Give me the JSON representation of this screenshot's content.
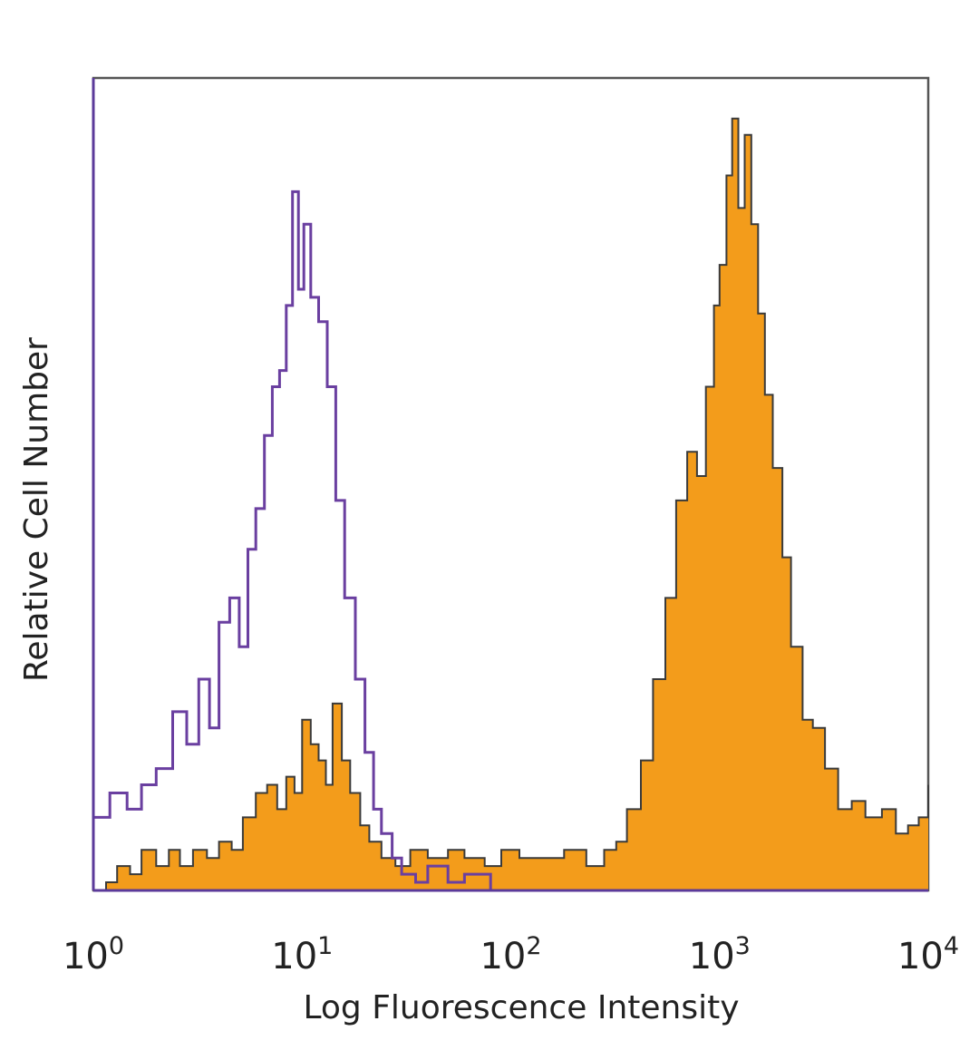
{
  "chart_data": {
    "type": "area",
    "title": "",
    "xlabel": "Log Fluorescence Intensity",
    "ylabel": "Relative Cell Number",
    "xscale": "log",
    "xlim": [
      1,
      10000
    ],
    "ylim": [
      0,
      1
    ],
    "grid": false,
    "legend": "none",
    "x_ticks": [
      {
        "base": "10",
        "exp": "0"
      },
      {
        "base": "10",
        "exp": "1"
      },
      {
        "base": "10",
        "exp": "2"
      },
      {
        "base": "10",
        "exp": "3"
      },
      {
        "base": "10",
        "exp": "4"
      }
    ],
    "series": [
      {
        "style": "outline",
        "color": "#6a3fa0",
        "x": [
          1.0,
          1.2,
          1.45,
          1.7,
          2.0,
          2.4,
          2.8,
          3.2,
          3.6,
          4.0,
          4.5,
          5.0,
          5.5,
          6.0,
          6.6,
          7.2,
          7.8,
          8.4,
          9.0,
          9.6,
          10.2,
          11.0,
          12.0,
          13.2,
          14.5,
          16.0,
          18.0,
          20.0,
          22.0,
          24.0,
          27.0,
          30.0,
          35.0,
          40.0,
          50.0,
          60.0,
          80.0,
          100.0
        ],
        "y": [
          0.09,
          0.12,
          0.1,
          0.13,
          0.15,
          0.22,
          0.18,
          0.26,
          0.2,
          0.33,
          0.36,
          0.3,
          0.42,
          0.47,
          0.56,
          0.62,
          0.64,
          0.72,
          0.86,
          0.74,
          0.82,
          0.73,
          0.7,
          0.62,
          0.48,
          0.36,
          0.26,
          0.17,
          0.1,
          0.07,
          0.04,
          0.02,
          0.01,
          0.03,
          0.01,
          0.02,
          0.0,
          0.0
        ]
      },
      {
        "style": "filled",
        "color": "#f39c1b",
        "x": [
          1.0,
          1.15,
          1.3,
          1.5,
          1.7,
          2.0,
          2.3,
          2.6,
          3.0,
          3.5,
          4.0,
          4.6,
          5.2,
          6.0,
          6.8,
          7.6,
          8.4,
          9.2,
          10.0,
          11.0,
          12.0,
          13.0,
          14.0,
          15.5,
          17.0,
          19.0,
          21.0,
          24.0,
          28.0,
          33.0,
          40.0,
          50.0,
          60.0,
          75.0,
          90.0,
          110.0,
          140.0,
          180.0,
          230.0,
          280.0,
          320.0,
          360.0,
          420.0,
          480.0,
          550.0,
          620.0,
          700.0,
          780.0,
          860.0,
          940.0,
          1000.0,
          1080.0,
          1150.0,
          1230.0,
          1320.0,
          1420.0,
          1530.0,
          1650.0,
          1800.0,
          2000.0,
          2200.0,
          2500.0,
          2800.0,
          3200.0,
          3700.0,
          4300.0,
          5000.0,
          6000.0,
          7000.0,
          8000.0,
          9000.0,
          10000.0
        ],
        "y": [
          0.0,
          0.01,
          0.03,
          0.02,
          0.05,
          0.03,
          0.05,
          0.03,
          0.05,
          0.04,
          0.06,
          0.05,
          0.09,
          0.12,
          0.13,
          0.1,
          0.14,
          0.12,
          0.21,
          0.18,
          0.16,
          0.13,
          0.23,
          0.16,
          0.12,
          0.08,
          0.06,
          0.04,
          0.03,
          0.05,
          0.04,
          0.05,
          0.04,
          0.03,
          0.05,
          0.04,
          0.04,
          0.05,
          0.03,
          0.05,
          0.06,
          0.1,
          0.16,
          0.26,
          0.36,
          0.48,
          0.54,
          0.51,
          0.62,
          0.72,
          0.77,
          0.88,
          0.95,
          0.84,
          0.93,
          0.82,
          0.71,
          0.61,
          0.52,
          0.41,
          0.3,
          0.21,
          0.2,
          0.15,
          0.1,
          0.11,
          0.09,
          0.1,
          0.07,
          0.08,
          0.09,
          0.13
        ]
      }
    ]
  }
}
